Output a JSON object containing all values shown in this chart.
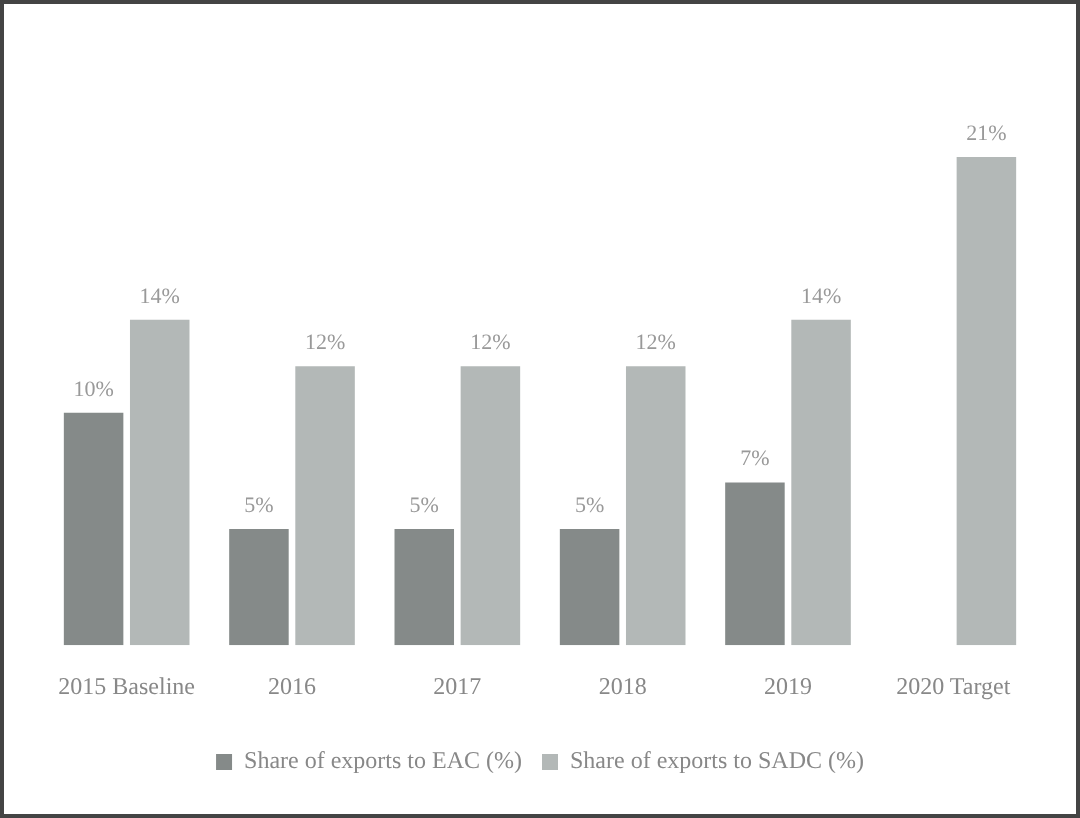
{
  "chart_data": {
    "type": "bar",
    "categories": [
      "2015 Baseline",
      "2016",
      "2017",
      "2018",
      "2019",
      "2020 Target"
    ],
    "series": [
      {
        "name": "Share of exports to EAC (%)",
        "color": "#858a89",
        "values": [
          10,
          5,
          5,
          5,
          7,
          null
        ],
        "value_labels": [
          "10%",
          "5%",
          "5%",
          "5%",
          "7%",
          null
        ]
      },
      {
        "name": "Share of exports to SADC (%)",
        "color": "#b3b8b7",
        "values": [
          14,
          12,
          12,
          12,
          14,
          21
        ],
        "value_labels": [
          "14%",
          "12%",
          "12%",
          "12%",
          "14%",
          "21%"
        ]
      }
    ],
    "legend": "bottom",
    "grid": false
  }
}
